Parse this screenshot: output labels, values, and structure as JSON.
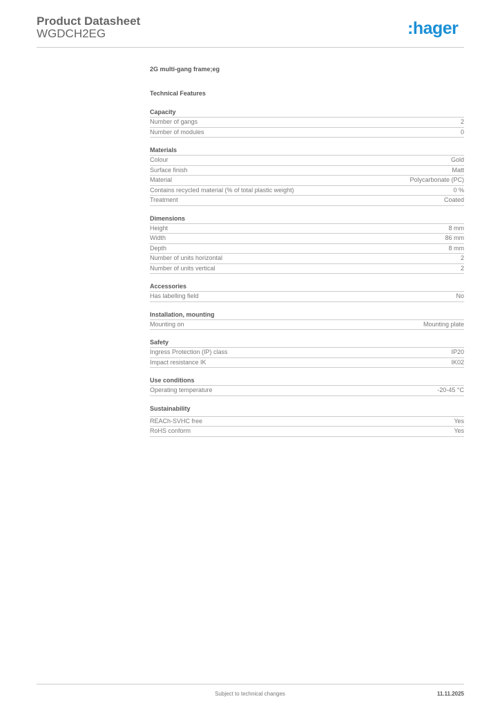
{
  "header": {
    "title": "Product Datasheet",
    "code": "WGDCH2EG",
    "logo": ":hager",
    "brand_color": "#1a8fd6"
  },
  "product_name": "2G multi-gang frame;eg",
  "technical_features_label": "Technical Features",
  "sections": [
    {
      "title": "Capacity",
      "rows": [
        [
          "Number of gangs",
          "2"
        ],
        [
          "Number of modules",
          "0"
        ]
      ]
    },
    {
      "title": "Materials",
      "rows": [
        [
          "Colour",
          "Gold"
        ],
        [
          "Surface finish",
          "Matt"
        ],
        [
          "Material",
          "Polycarbonate (PC)"
        ],
        [
          "Contains recycled material (% of total plastic weight)",
          "0 %"
        ],
        [
          "Treatment",
          "Coated"
        ]
      ]
    },
    {
      "title": "Dimensions",
      "rows": [
        [
          "Height",
          "8 mm"
        ],
        [
          "Width",
          "86 mm"
        ],
        [
          "Depth",
          "8 mm"
        ],
        [
          "Number of units horizontal",
          "2"
        ],
        [
          "Number of units vertical",
          "2"
        ]
      ]
    },
    {
      "title": "Accessories",
      "rows": [
        [
          "Has labelling field",
          "No"
        ]
      ]
    },
    {
      "title": "Installation, mounting",
      "rows": [
        [
          "Mounting on",
          "Mounting plate"
        ]
      ]
    },
    {
      "title": "Safety",
      "rows": [
        [
          "Ingress Protection (IP) class",
          "IP20"
        ],
        [
          "Impact resistance IK",
          "IK02"
        ]
      ]
    },
    {
      "title": "Use conditions",
      "rows": [
        [
          "Operating temperature",
          "-20-45 °C"
        ]
      ]
    },
    {
      "title": "Sustainability",
      "rows": [
        [
          "REACh-SVHC free",
          "Yes"
        ],
        [
          "RoHS conform",
          "Yes"
        ]
      ]
    }
  ],
  "footer": {
    "note": "Subject to technical changes",
    "date": "11.11.2025"
  }
}
